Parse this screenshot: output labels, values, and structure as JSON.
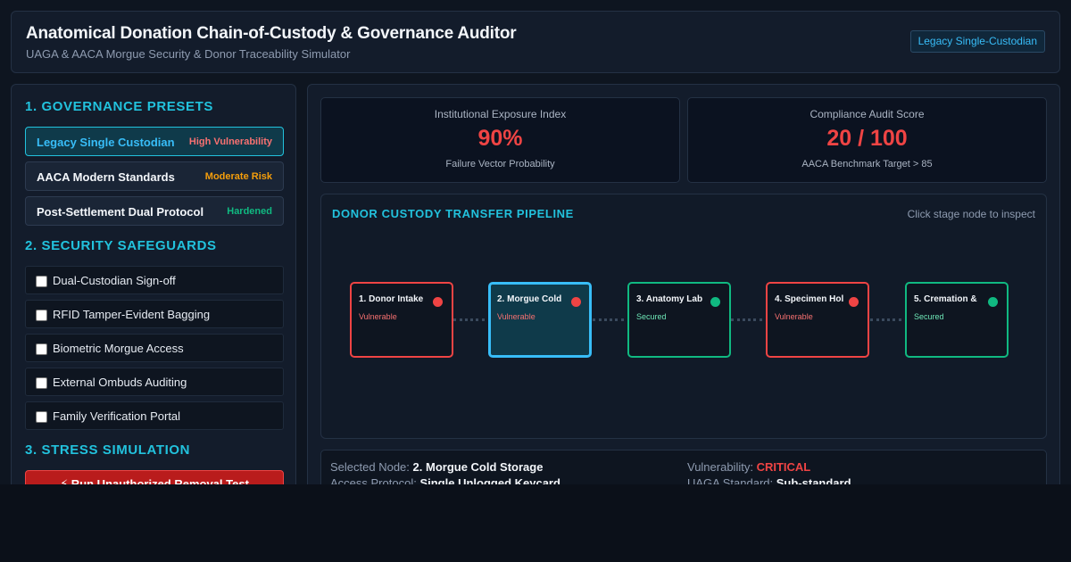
{
  "header": {
    "title": "Anatomical Donation Chain-of-Custody & Governance Auditor",
    "subtitle": "UAGA & AACA Morgue Security & Donor Traceability Simulator",
    "mode_badge": "Legacy Single-Custodian"
  },
  "sidebar": {
    "presets_title": "1. GOVERNANCE PRESETS",
    "presets": [
      {
        "name": "Legacy Single Custodian",
        "tag": "High Vulnerability",
        "tag_color": "#f87171",
        "active": true
      },
      {
        "name": "AACA Modern Standards",
        "tag": "Moderate Risk",
        "tag_color": "#f59e0b",
        "active": false
      },
      {
        "name": "Post-Settlement Dual Protocol",
        "tag": "Hardened",
        "tag_color": "#10b981",
        "active": false
      }
    ],
    "safeguards_title": "2. SECURITY SAFEGUARDS",
    "safeguards": [
      {
        "label": "Dual-Custodian Sign-off",
        "checked": false
      },
      {
        "label": "RFID Tamper-Evident Bagging",
        "checked": false
      },
      {
        "label": "Biometric Morgue Access",
        "checked": false
      },
      {
        "label": "External Ombuds Auditing",
        "checked": false
      },
      {
        "label": "Family Verification Portal",
        "checked": false
      }
    ],
    "stress_title": "3. STRESS SIMULATION",
    "run_button": "⚡ Run Unauthorized Removal Test"
  },
  "metrics": [
    {
      "label": "Institutional Exposure Index",
      "value": "90%",
      "note": "Failure Vector Probability"
    },
    {
      "label": "Compliance Audit Score",
      "value": "20 / 100",
      "note": "AACA Benchmark Target > 85"
    }
  ],
  "pipeline": {
    "title": "DONOR CUSTODY TRANSFER PIPELINE",
    "hint": "Click stage node to inspect",
    "nodes": [
      {
        "name": "1. Donor Intake",
        "status": "Vulnerable",
        "selected": false
      },
      {
        "name": "2. Morgue Cold",
        "status": "Vulnerable",
        "selected": true
      },
      {
        "name": "3. Anatomy Lab",
        "status": "Secured",
        "selected": false
      },
      {
        "name": "4. Specimen Hol",
        "status": "Vulnerable",
        "selected": false
      },
      {
        "name": "5. Cremation &",
        "status": "Secured",
        "selected": false
      }
    ],
    "colors": {
      "vulnerable": "#ef4444",
      "secured": "#10b981",
      "vulnerable_text": "#f87171",
      "secured_text": "#6ee7b7"
    }
  },
  "details": {
    "selected_label": "Selected Node:",
    "selected_value": "2. Morgue Cold Storage",
    "vuln_label": "Vulnerability:",
    "vuln_value": "CRITICAL",
    "access_label": "Access Protocol:",
    "access_value": "Single Unlogged Keycard",
    "uaga_label": "UAGA Standard:",
    "uaga_value": "Sub-standard"
  }
}
